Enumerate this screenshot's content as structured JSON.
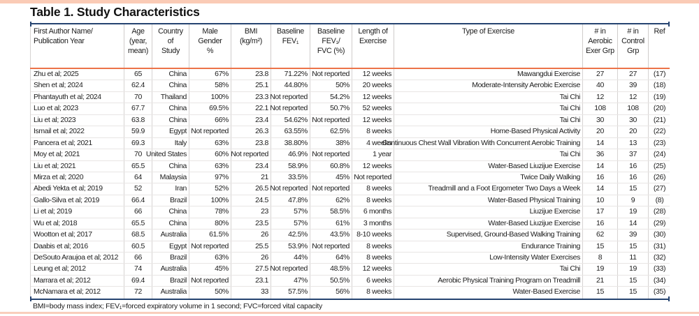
{
  "page": {
    "title": "Table 1. Study Characteristics"
  },
  "colors": {
    "accent_bar_pink": "#FACBB6",
    "bottom_bar_pink": "#F9CEBC",
    "table_border_navy": "#254370",
    "header_divider_orange": "#EC7349",
    "grid_line_gray": "#D6D3D2"
  },
  "table": {
    "headers": [
      "First Author Name/\nPublication Year",
      "Age\n(year,\nmean)",
      "Country\nof\nStudy",
      "Male\nGender\n%",
      "BMI\n(kg/m²)",
      "Baseline\nFEV₁",
      "Baseline\nFEV₁/\nFVC (%)",
      "Length of\nExercise",
      "Type of Exercise",
      "# in\nAerobic\nExer Grp",
      "# in\nControl\nGrp",
      "Ref"
    ],
    "rows": [
      [
        "Zhu et al; 2025",
        "65",
        "China",
        "67%",
        "23.8",
        "71.22%",
        "Not reported",
        "12 weeks",
        "Mawangdui Exercise",
        "27",
        "27",
        "(17)"
      ],
      [
        "Shen et al; 2024",
        "62.4",
        "China",
        "58%",
        "25.1",
        "44.80%",
        "50%",
        "20 weeks",
        "Moderate-Intensity Aerobic Exercise",
        "40",
        "39",
        "(18)"
      ],
      [
        "Phantayuth et al; 2024",
        "70",
        "Thailand",
        "100%",
        "23.3",
        "Not reported",
        "54.2%",
        "12 weeks",
        "Tai Chi",
        "12",
        "12",
        "(19)"
      ],
      [
        "Luo et al; 2023",
        "67.7",
        "China",
        "69.5%",
        "22.1",
        "Not reported",
        "50.7%",
        "52 weeks",
        "Tai Chi",
        "108",
        "108",
        "(20)"
      ],
      [
        "Liu et al; 2023",
        "63.8",
        "China",
        "66%",
        "23.4",
        "54.62%",
        "Not reported",
        "12 weeks",
        "Tai Chi",
        "30",
        "30",
        "(21)"
      ],
      [
        "Ismail et al; 2022",
        "59.9",
        "Egypt",
        "Not reported",
        "26.3",
        "63.55%",
        "62.5%",
        "8 weeks",
        "Home-Based Physical Activity",
        "20",
        "20",
        "(22)"
      ],
      [
        "Pancera et al; 2021",
        "69.3",
        "Italy",
        "63%",
        "23.8",
        "38.80%",
        "38%",
        "4 weeks",
        "Continuous Chest Wall Vibration With Concurrent Aerobic Training",
        "14",
        "13",
        "(23)"
      ],
      [
        "Moy et al; 2021",
        "70",
        "United States",
        "60%",
        "Not reported",
        "46.9%",
        "Not reported",
        "1 year",
        "Tai Chi",
        "36",
        "37",
        "(24)"
      ],
      [
        "Liu et al; 2021",
        "65.5",
        "China",
        "63%",
        "23.4",
        "58.9%",
        "60.8%",
        "12 weeks",
        "Water-Based Liuzijue Exercise",
        "14",
        "16",
        "(25)"
      ],
      [
        "Mirza et al; 2020",
        "64",
        "Malaysia",
        "97%",
        "21",
        "33.5%",
        "45%",
        "Not reported",
        "Twice Daily Walking",
        "16",
        "16",
        "(26)"
      ],
      [
        "Abedi Yekta et al; 2019",
        "52",
        "Iran",
        "52%",
        "26.5",
        "Not reported",
        "Not reported",
        "8 weeks",
        "Treadmill and a Foot Ergometer Two Days a Week",
        "14",
        "15",
        "(27)"
      ],
      [
        "Gallo-Silva et al; 2019",
        "66.4",
        "Brazil",
        "100%",
        "24.5",
        "47.8%",
        "62%",
        "8 weeks",
        "Water-Based Physical Training",
        "10",
        "9",
        "(8)"
      ],
      [
        "Li et al; 2019",
        "66",
        "China",
        "78%",
        "23",
        "57%",
        "58.5%",
        "6 months",
        "Liuzijue Exercise",
        "17",
        "19",
        "(28)"
      ],
      [
        "Wu et al; 2018",
        "65.5",
        "China",
        "80%",
        "23.5",
        "57%",
        "61%",
        "3 months",
        "Water-Based Liuzijue Exercise",
        "16",
        "14",
        "(29)"
      ],
      [
        "Wootton et al; 2017",
        "68.5",
        "Australia",
        "61.5%",
        "26",
        "42.5%",
        "43.5%",
        "8-10 weeks",
        "Supervised, Ground-Based Walking Training",
        "62",
        "39",
        "(30)"
      ],
      [
        "Daabis et al; 2016",
        "60.5",
        "Egypt",
        "Not reported",
        "25.5",
        "53.9%",
        "Not reported",
        "8 weeks",
        "Endurance Training",
        "15",
        "15",
        "(31)"
      ],
      [
        "DeSouto Araujoa et al; 2012",
        "66",
        "Brazil",
        "63%",
        "26",
        "44%",
        "64%",
        "8 weeks",
        "Low-Intensity Water Exercises",
        "8",
        "11",
        "(32)"
      ],
      [
        "Leung et al; 2012",
        "74",
        "Australia",
        "45%",
        "27.5",
        "Not reported",
        "48.5%",
        "12 weeks",
        "Tai Chi",
        "19",
        "19",
        "(33)"
      ],
      [
        "Marrara et al; 2012",
        "69.4",
        "Brazil",
        "Not reported",
        "23.1",
        "47%",
        "50.5%",
        "6 weeks",
        "Aerobic Physical Training Program on Treadmill",
        "21",
        "15",
        "(34)"
      ],
      [
        "McNamara et al; 2012",
        "72",
        "Australia",
        "50%",
        "33",
        "57.5%",
        "56%",
        "8 weeks",
        "Water-Based Exercise",
        "15",
        "15",
        "(35)"
      ]
    ]
  },
  "footnote": "BMI=body mass index; FEV₁=forced expiratory volume in 1 second; FVC=forced vital capacity"
}
